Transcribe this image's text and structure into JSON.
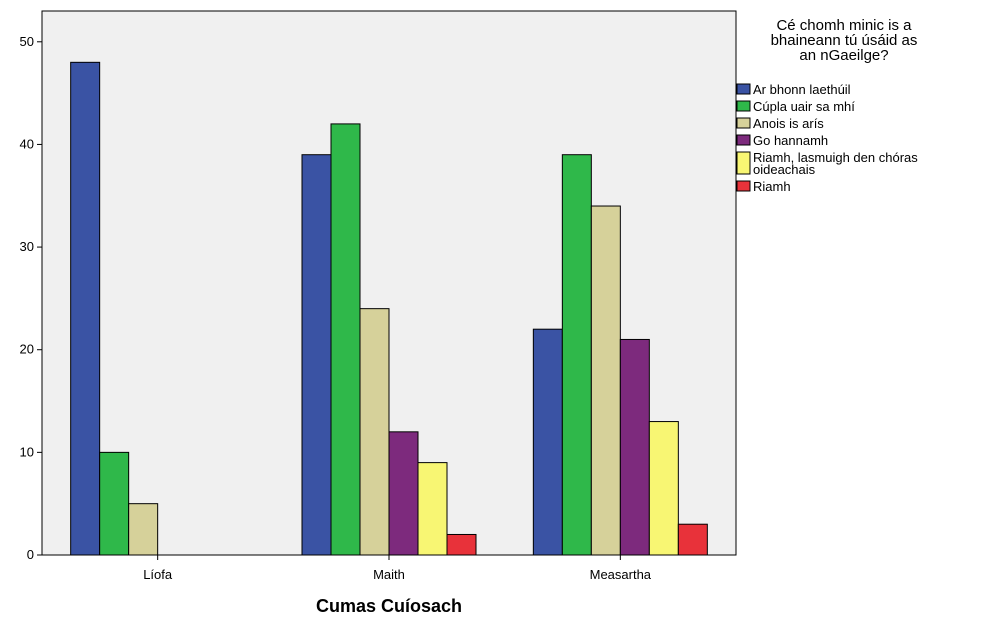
{
  "chart_data": {
    "type": "bar",
    "xlabel": "Cumas Cuíosach",
    "ylabel": "",
    "ylim": [
      0,
      53
    ],
    "yticks": [
      0,
      10,
      20,
      30,
      40,
      50
    ],
    "grid": false,
    "categories": [
      "Líofa",
      "Maith",
      "Measartha"
    ],
    "legend": {
      "title_lines": [
        "Cé chomh minic is a",
        "bhaineann tú úsáid as",
        "an nGaeilge?"
      ],
      "placement": "right"
    },
    "series": [
      {
        "name_lines": [
          "Ar bhonn laethúil"
        ],
        "color": "#3a53a4",
        "values": [
          48,
          39,
          22
        ]
      },
      {
        "name_lines": [
          "Cúpla uair sa mhí"
        ],
        "color": "#2fb84a",
        "values": [
          10,
          42,
          39
        ]
      },
      {
        "name_lines": [
          "Anois is arís"
        ],
        "color": "#d6d19a",
        "values": [
          5,
          24,
          34
        ]
      },
      {
        "name_lines": [
          "Go hannamh"
        ],
        "color": "#7d2a7d",
        "values": [
          null,
          12,
          21
        ]
      },
      {
        "name_lines": [
          "Riamh, lasmuigh den chóras",
          "oideachais"
        ],
        "color": "#f8f673",
        "values": [
          null,
          9,
          13
        ]
      },
      {
        "name_lines": [
          "Riamh"
        ],
        "color": "#e8323a",
        "values": [
          null,
          2,
          3
        ]
      }
    ]
  }
}
